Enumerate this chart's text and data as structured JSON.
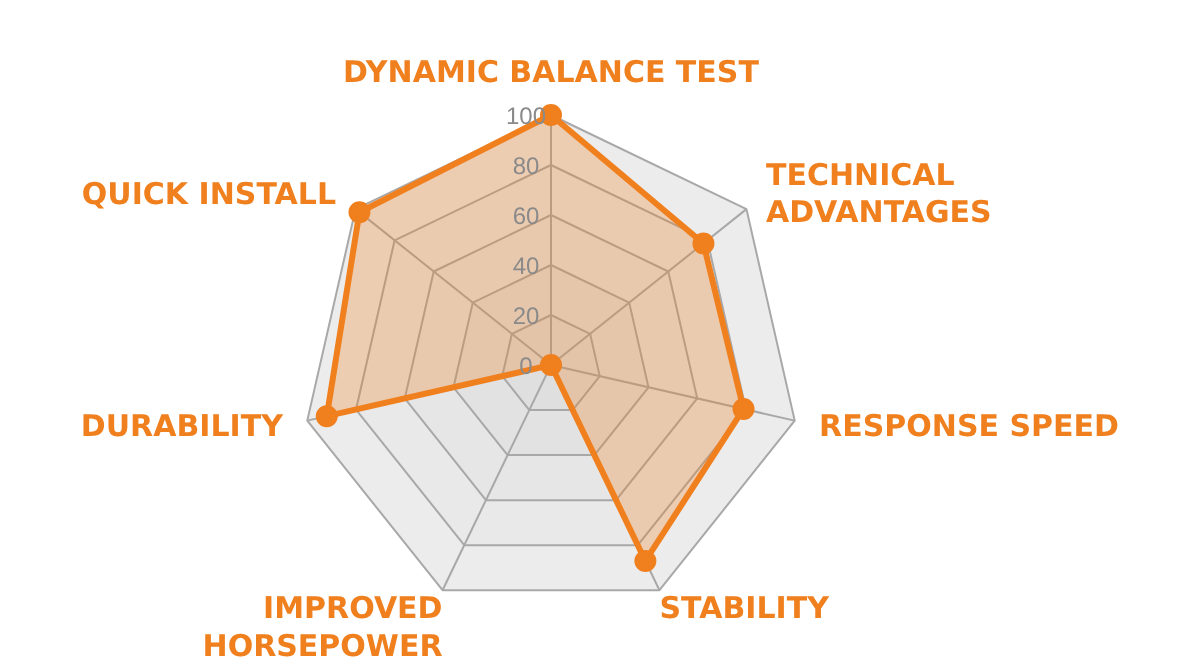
{
  "chart_data": {
    "type": "radar",
    "categories": [
      "DYNAMIC BALANCE TEST",
      "TECHNICAL\nADVANTAGES",
      "RESPONSE SPEED",
      "STABILITY",
      "IMPROVED\nHORSEPOWER",
      "DURABILITY",
      "QUICK INSTALL"
    ],
    "series": [
      {
        "color": "#f07f1e",
        "values": [
          100,
          78,
          79,
          87,
          0,
          92,
          98
        ]
      }
    ],
    "ylim": [
      0,
      100
    ],
    "yticks": [
      0,
      20,
      40,
      60,
      80,
      100
    ],
    "grid": true,
    "marker": "circle"
  }
}
